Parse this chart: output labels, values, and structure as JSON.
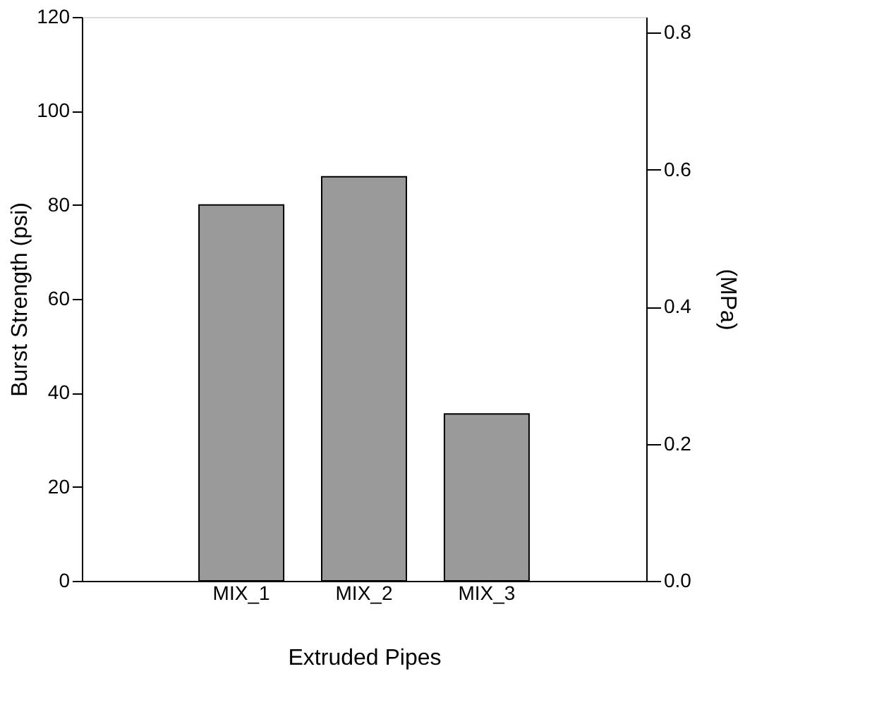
{
  "chart_data": {
    "type": "bar",
    "categories": [
      "MIX_1",
      "MIX_2",
      "MIX_3"
    ],
    "values": [
      80,
      86,
      35.5
    ],
    "color": "#9a9a9a",
    "xlabel": "Extruded Pipes",
    "ylabel": "Burst Strength (psi)",
    "y2label": "(MPa)",
    "ylim": [
      0,
      120
    ],
    "yticks": [
      0,
      20,
      40,
      60,
      80,
      100,
      120
    ],
    "y2lim": [
      0,
      0.823
    ],
    "y2ticks": [
      {
        "value": 0,
        "label": "0.0"
      },
      0.2,
      0.4,
      0.6,
      0.8
    ],
    "grid": false
  }
}
